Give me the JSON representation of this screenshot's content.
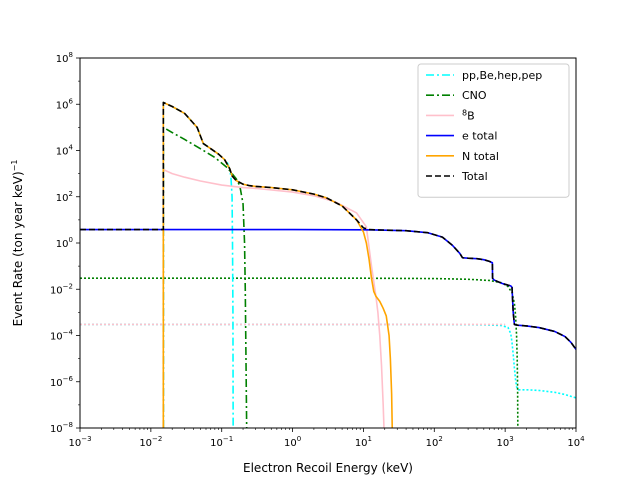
{
  "chart_data": {
    "type": "line",
    "xlabel": "Electron Recoil Energy (keV)",
    "ylabel": "Event Rate (ton year keV)",
    "ylabel_sup": "−1",
    "xscale": "log",
    "yscale": "log",
    "xlim": [
      0.001,
      10000
    ],
    "ylim": [
      1e-08,
      100000000.0
    ],
    "x_ticks": [
      {
        "value": 0.001,
        "base": "10",
        "exp": "−3"
      },
      {
        "value": 0.01,
        "base": "10",
        "exp": "−2"
      },
      {
        "value": 0.1,
        "base": "10",
        "exp": "−1"
      },
      {
        "value": 1,
        "base": "10",
        "exp": "0"
      },
      {
        "value": 10,
        "base": "10",
        "exp": "1"
      },
      {
        "value": 100,
        "base": "10",
        "exp": "2"
      },
      {
        "value": 1000,
        "base": "10",
        "exp": "3"
      },
      {
        "value": 10000,
        "base": "10",
        "exp": "4"
      }
    ],
    "y_ticks": [
      {
        "value": 1e-08,
        "base": "10",
        "exp": "−8"
      },
      {
        "value": 1e-06,
        "base": "10",
        "exp": "−6"
      },
      {
        "value": 0.0001,
        "base": "10",
        "exp": "−4"
      },
      {
        "value": 0.01,
        "base": "10",
        "exp": "−2"
      },
      {
        "value": 1,
        "base": "10",
        "exp": "0"
      },
      {
        "value": 100,
        "base": "10",
        "exp": "2"
      },
      {
        "value": 10000,
        "base": "10",
        "exp": "4"
      },
      {
        "value": 1000000,
        "base": "10",
        "exp": "6"
      },
      {
        "value": 100000000,
        "base": "10",
        "exp": "8"
      }
    ],
    "legend_position": "top-right",
    "grid": false,
    "legend": [
      {
        "label": "pp,Be,hep,pep",
        "color": "#00ffff",
        "dash": "dashdot"
      },
      {
        "label": "CNO",
        "color": "#008000",
        "dash": "dashdot"
      },
      {
        "label": "B",
        "label_sup": "8",
        "color": "#ffc0cb",
        "dash": "solid"
      },
      {
        "label": "e total",
        "color": "#0000ff",
        "dash": "solid"
      },
      {
        "label": "N total",
        "color": "#ffa500",
        "dash": "solid"
      },
      {
        "label": "Total",
        "color": "#000000",
        "dash": "dashed"
      }
    ],
    "series": [
      {
        "color": "#00ffff",
        "dash": "dotted",
        "points": [
          [
            0.001,
            0.0003
          ],
          [
            0.01,
            0.0003
          ],
          [
            0.1,
            0.0003
          ],
          [
            1,
            0.0003
          ],
          [
            10,
            0.0003
          ],
          [
            100,
            0.0003
          ],
          [
            500,
            0.00029
          ],
          [
            900,
            0.00027
          ],
          [
            1100,
            0.00022
          ],
          [
            1200,
            0.00012
          ],
          [
            1250,
            5e-05
          ],
          [
            1300,
            1.5e-05
          ],
          [
            1350,
            4e-06
          ],
          [
            1400,
            1.3e-06
          ],
          [
            1450,
            6e-07
          ],
          [
            1550,
            4.5e-07
          ],
          [
            2000,
            4.5e-07
          ],
          [
            3000,
            4.2e-07
          ],
          [
            5000,
            3.5e-07
          ],
          [
            7000,
            2.8e-07
          ],
          [
            10000,
            2e-07
          ]
        ]
      },
      {
        "color": "#008000",
        "dash": "dotted",
        "points": [
          [
            0.001,
            0.03
          ],
          [
            0.01,
            0.03
          ],
          [
            0.1,
            0.03
          ],
          [
            1,
            0.03
          ],
          [
            10,
            0.03
          ],
          [
            100,
            0.029
          ],
          [
            300,
            0.027
          ],
          [
            600,
            0.024
          ],
          [
            900,
            0.019
          ],
          [
            1100,
            0.013
          ],
          [
            1250,
            0.007
          ],
          [
            1350,
            0.0025
          ],
          [
            1400,
            0.0008
          ],
          [
            1450,
            0.0001
          ],
          [
            1480,
            1e-05
          ],
          [
            1500,
            5e-07
          ],
          [
            1510,
            1e-08
          ]
        ]
      },
      {
        "color": "#ffc0cb",
        "dash": "dotted",
        "points": [
          [
            0.001,
            0.0003
          ],
          [
            0.01,
            0.0003
          ],
          [
            0.1,
            0.0003
          ],
          [
            1,
            0.0003
          ],
          [
            10,
            0.0003
          ],
          [
            100,
            0.0003
          ],
          [
            1000,
            0.0003
          ]
        ]
      },
      {
        "color": "#00ffff",
        "dash": "dashdot",
        "points": [
          [
            0.015,
            1e-08
          ],
          [
            0.015,
            1200000
          ],
          [
            0.02,
            800000
          ],
          [
            0.03,
            400000
          ],
          [
            0.045,
            100000
          ],
          [
            0.055,
            20000
          ],
          [
            0.07,
            12000
          ],
          [
            0.09,
            7000
          ],
          [
            0.11,
            4000
          ],
          [
            0.12,
            3000
          ],
          [
            0.13,
            1500
          ],
          [
            0.135,
            700
          ],
          [
            0.14,
            100
          ],
          [
            0.142,
            1
          ],
          [
            0.144,
            0.001
          ],
          [
            0.145,
            1e-08
          ]
        ]
      },
      {
        "color": "#008000",
        "dash": "dashdot",
        "points": [
          [
            0.015,
            1e-08
          ],
          [
            0.015,
            100000
          ],
          [
            0.02,
            60000
          ],
          [
            0.03,
            30000
          ],
          [
            0.05,
            12000
          ],
          [
            0.08,
            5000
          ],
          [
            0.12,
            1800
          ],
          [
            0.16,
            600
          ],
          [
            0.18,
            300
          ],
          [
            0.2,
            50
          ],
          [
            0.21,
            1
          ],
          [
            0.215,
            0.01
          ],
          [
            0.22,
            1e-05
          ],
          [
            0.225,
            1e-08
          ]
        ]
      },
      {
        "color": "#ffc0cb",
        "dash": "solid",
        "points": [
          [
            0.015,
            1500
          ],
          [
            0.02,
            1000
          ],
          [
            0.03,
            700
          ],
          [
            0.05,
            480
          ],
          [
            0.1,
            320
          ],
          [
            0.2,
            250
          ],
          [
            0.3,
            230
          ],
          [
            1,
            160
          ],
          [
            2,
            110
          ],
          [
            4,
            60
          ],
          [
            8,
            20
          ],
          [
            11,
            5
          ],
          [
            13,
            0.1
          ],
          [
            15,
            0.005
          ],
          [
            16,
            0.001
          ],
          [
            17,
            0.0001
          ],
          [
            18,
            5e-06
          ],
          [
            19,
            1e-07
          ],
          [
            19.5,
            1e-08
          ]
        ]
      },
      {
        "color": "#0000ff",
        "dash": "solid",
        "points": [
          [
            0.001,
            3.8
          ],
          [
            0.01,
            3.8
          ],
          [
            0.1,
            3.8
          ],
          [
            1,
            3.8
          ],
          [
            10,
            3.7
          ],
          [
            20,
            3.6
          ],
          [
            40,
            3.4
          ],
          [
            80,
            2.8
          ],
          [
            130,
            1.8
          ],
          [
            180,
            0.8
          ],
          [
            230,
            0.35
          ],
          [
            250,
            0.23
          ],
          [
            300,
            0.22
          ],
          [
            400,
            0.21
          ],
          [
            500,
            0.19
          ],
          [
            600,
            0.16
          ],
          [
            660,
            0.14
          ],
          [
            665,
            0.03
          ],
          [
            700,
            0.025
          ],
          [
            900,
            0.018
          ],
          [
            1100,
            0.015
          ],
          [
            1200,
            0.014
          ],
          [
            1250,
            0.012
          ],
          [
            1300,
            0.001
          ],
          [
            1350,
            0.0003
          ],
          [
            1500,
            0.00028
          ],
          [
            2000,
            0.00026
          ],
          [
            3000,
            0.00022
          ],
          [
            5000,
            0.00015
          ],
          [
            7000,
            9e-05
          ],
          [
            8500,
            5e-05
          ],
          [
            10000,
            2.5e-05
          ]
        ]
      },
      {
        "color": "#ffa500",
        "dash": "solid",
        "points": [
          [
            0.015,
            1e-08
          ],
          [
            0.015,
            1200000
          ],
          [
            0.02,
            800000
          ],
          [
            0.03,
            400000
          ],
          [
            0.045,
            100000
          ],
          [
            0.055,
            20000
          ],
          [
            0.07,
            12000
          ],
          [
            0.09,
            7000
          ],
          [
            0.11,
            4000
          ],
          [
            0.13,
            1600
          ],
          [
            0.14,
            800
          ],
          [
            0.16,
            500
          ],
          [
            0.2,
            350
          ],
          [
            0.25,
            300
          ],
          [
            0.3,
            280
          ],
          [
            0.5,
            250
          ],
          [
            1,
            200
          ],
          [
            2,
            130
          ],
          [
            3,
            90
          ],
          [
            5,
            40
          ],
          [
            8,
            10
          ],
          [
            10,
            3
          ],
          [
            11,
            1
          ],
          [
            12,
            0.2
          ],
          [
            13,
            0.03
          ],
          [
            14,
            0.008
          ],
          [
            15,
            0.005
          ],
          [
            17,
            0.003
          ],
          [
            19,
            0.0015
          ],
          [
            21,
            0.0007
          ],
          [
            23,
            0.0001
          ],
          [
            24,
            1e-05
          ],
          [
            25,
            3e-07
          ],
          [
            25.5,
            1e-08
          ]
        ]
      },
      {
        "color": "#000000",
        "dash": "dashed",
        "points": [
          [
            0.001,
            3.8
          ],
          [
            0.015,
            3.8
          ],
          [
            0.015,
            1200000
          ],
          [
            0.02,
            800000
          ],
          [
            0.03,
            400000
          ],
          [
            0.045,
            100000
          ],
          [
            0.055,
            20000
          ],
          [
            0.07,
            12000
          ],
          [
            0.09,
            7000
          ],
          [
            0.11,
            4000
          ],
          [
            0.13,
            1600
          ],
          [
            0.14,
            800
          ],
          [
            0.16,
            500
          ],
          [
            0.2,
            350
          ],
          [
            0.25,
            300
          ],
          [
            0.3,
            280
          ],
          [
            0.5,
            250
          ],
          [
            1,
            200
          ],
          [
            2,
            130
          ],
          [
            3,
            90
          ],
          [
            5,
            40
          ],
          [
            8,
            10
          ],
          [
            10,
            4.5
          ],
          [
            12,
            3.8
          ],
          [
            20,
            3.6
          ],
          [
            40,
            3.4
          ],
          [
            80,
            2.8
          ],
          [
            130,
            1.8
          ],
          [
            180,
            0.8
          ],
          [
            230,
            0.35
          ],
          [
            250,
            0.23
          ],
          [
            300,
            0.22
          ],
          [
            400,
            0.21
          ],
          [
            500,
            0.19
          ],
          [
            600,
            0.16
          ],
          [
            660,
            0.14
          ],
          [
            665,
            0.03
          ],
          [
            700,
            0.025
          ],
          [
            900,
            0.018
          ],
          [
            1100,
            0.015
          ],
          [
            1200,
            0.014
          ],
          [
            1250,
            0.012
          ],
          [
            1300,
            0.001
          ],
          [
            1350,
            0.0003
          ],
          [
            1500,
            0.00028
          ],
          [
            2000,
            0.00026
          ],
          [
            3000,
            0.00022
          ],
          [
            5000,
            0.00015
          ],
          [
            7000,
            9e-05
          ],
          [
            8500,
            5e-05
          ],
          [
            10000,
            2.5e-05
          ]
        ]
      }
    ]
  }
}
